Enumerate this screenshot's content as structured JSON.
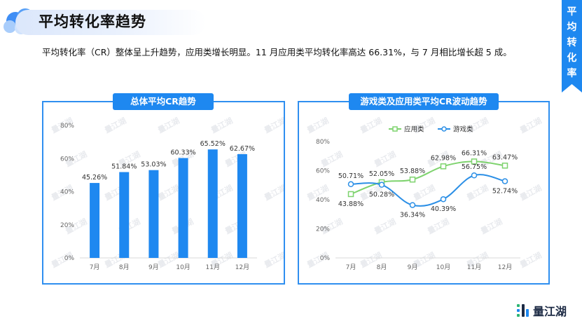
{
  "header": {
    "title": "平均转化率趋势"
  },
  "side_tab": {
    "text": "平\n均\n转\n化\n率"
  },
  "summary": "平均转化率（CR）整体呈上升趋势，应用类增长明显。11 月应用类平均转化率高达 66.31%，与 7 月相比增长超 5 成。",
  "brand": {
    "name": "量江湖",
    "logo_icon": "liangjianghu-logo-icon"
  },
  "watermark_text": "量江湖",
  "colors": {
    "accent": "#1e88f0",
    "bar": "#1e88f0",
    "app_line": "#7ed36e",
    "game_line": "#2b8fe6"
  },
  "chart_data": [
    {
      "type": "bar",
      "title": "总体平均CR趋势",
      "categories": [
        "7月",
        "8月",
        "9月",
        "10月",
        "11月",
        "12月"
      ],
      "values": [
        45.26,
        51.84,
        53.03,
        60.33,
        65.52,
        62.67
      ],
      "data_labels": [
        "45.26%",
        "51.84%",
        "53.03%",
        "60.33%",
        "65.52%",
        "62.67%"
      ],
      "ylim": [
        0,
        80
      ],
      "yticks": [
        "0%",
        "20%",
        "40%",
        "60%",
        "80%"
      ],
      "grid": false,
      "legend": "none"
    },
    {
      "type": "line",
      "title": "游戏类及应用类平均CR波动趋势",
      "categories": [
        "7月",
        "8月",
        "9月",
        "10月",
        "11月",
        "12月"
      ],
      "series": [
        {
          "name": "应用类",
          "values": [
            43.88,
            52.05,
            53.88,
            62.98,
            66.31,
            63.47
          ],
          "data_labels": [
            "43.88%",
            "52.05%",
            "53.88%",
            "62.98%",
            "66.31%",
            "63.47%"
          ],
          "marker": "square"
        },
        {
          "name": "游戏类",
          "values": [
            50.71,
            50.28,
            36.34,
            40.39,
            56.75,
            52.74
          ],
          "data_labels": [
            "50.71%",
            "50.28%",
            "36.34%",
            "40.39%",
            "56.75%",
            "52.74%"
          ],
          "marker": "circle"
        }
      ],
      "ylim": [
        0,
        80
      ],
      "yticks": [
        "0%",
        "20%",
        "40%",
        "60%",
        "80%"
      ],
      "grid": false,
      "legend": "top-center",
      "smooth": true
    }
  ]
}
